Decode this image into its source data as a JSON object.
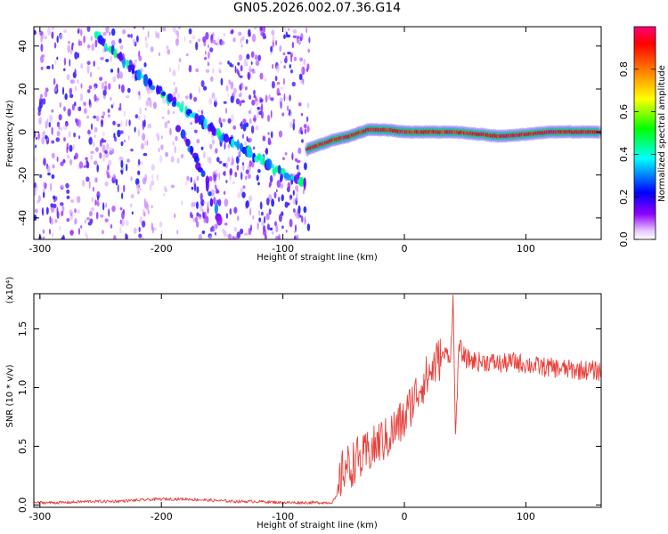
{
  "title": "GN05.2026.002.07.36.G14",
  "chart_data": [
    {
      "type": "heatmap",
      "xlabel": "Height of straight line (km)",
      "ylabel": "Frequency (Hz)",
      "xlim": [
        -305,
        162
      ],
      "ylim": [
        -50,
        49
      ],
      "xticks": [
        -300,
        -200,
        -100,
        0,
        100
      ],
      "yticks": [
        -40,
        -20,
        0,
        20,
        40
      ],
      "colorbar": {
        "label": "Normalized spectral amplitude",
        "range": [
          0,
          1
        ],
        "ticks": [
          0.0,
          0.2,
          0.4,
          0.6,
          0.8
        ],
        "colors": [
          "#ffffff",
          "#8e00ff",
          "#0000ff",
          "#00ffff",
          "#00ff00",
          "#ffff00",
          "#ff7700",
          "#ff0000",
          "#ff0077"
        ]
      },
      "features": [
        {
          "name": "",
          "points": [
            [
              -255,
              46
            ],
            [
              -230,
              32
            ],
            [
              -200,
              18
            ],
            [
              -175,
              8
            ],
            [
              -150,
              -2
            ],
            [
              -130,
              -9
            ],
            [
              -110,
              -16
            ],
            [
              -90,
              -22
            ],
            [
              -80,
              -24
            ]
          ],
          "amplitude": 0.35
        },
        {
          "name": "",
          "points": [
            [
              -185,
              1
            ],
            [
              -165,
              -20
            ],
            [
              -150,
              -45
            ]
          ],
          "amplitude": 0.25
        },
        {
          "name": "",
          "points": [
            [
              -80,
              -8
            ],
            [
              -60,
              -4
            ],
            [
              -45,
              -2
            ],
            [
              -30,
              1
            ],
            [
              -15,
              1
            ],
            [
              0,
              0
            ],
            [
              20,
              0
            ],
            [
              40,
              0
            ],
            [
              80,
              -2
            ],
            [
              120,
              0
            ],
            [
              162,
              0
            ]
          ],
          "amplitude": 0.9
        }
      ]
    },
    {
      "type": "line",
      "xlabel": "Height of straight line (km)",
      "ylabel": "SNR (10 * v/v)",
      "multiplier": "(x10⁴)",
      "xlim": [
        -305,
        162
      ],
      "ylim": [
        -0.02,
        1.8
      ],
      "xticks": [
        -300,
        -200,
        -100,
        0,
        100
      ],
      "yticks": [
        0.0,
        0.5,
        1.0,
        1.5
      ],
      "color": "#e8413c",
      "series": [
        {
          "x": [
            -305,
            -280,
            -260,
            -240,
            -220,
            -200,
            -180,
            -160,
            -140,
            -120,
            -100,
            -90,
            -80,
            -60,
            -55,
            -52,
            -48,
            -45,
            -40,
            -35,
            -30,
            -25,
            -20,
            -15,
            -10,
            -5,
            0,
            5,
            10,
            15,
            20,
            25,
            30,
            35,
            38,
            40,
            42,
            45,
            50,
            60,
            70,
            80,
            90,
            100,
            110,
            120,
            130,
            140,
            150,
            160,
            162
          ],
          "y": [
            0.02,
            0.02,
            0.03,
            0.03,
            0.04,
            0.05,
            0.05,
            0.04,
            0.03,
            0.03,
            0.02,
            0.02,
            0.02,
            0.02,
            0.08,
            0.25,
            0.35,
            0.3,
            0.4,
            0.38,
            0.45,
            0.48,
            0.55,
            0.55,
            0.62,
            0.68,
            0.72,
            0.85,
            0.95,
            1.05,
            1.1,
            1.2,
            1.25,
            1.3,
            1.25,
            1.78,
            0.6,
            1.35,
            1.25,
            1.22,
            1.22,
            1.2,
            1.22,
            1.2,
            1.18,
            1.17,
            1.16,
            1.15,
            1.15,
            1.14,
            1.14
          ]
        }
      ]
    }
  ]
}
